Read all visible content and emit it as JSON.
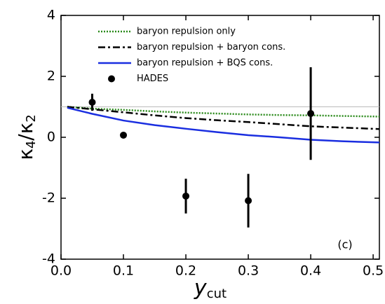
{
  "chart_data": {
    "type": "line",
    "ylabel": [
      "κ",
      "4",
      "/κ",
      "2"
    ],
    "xlabel": [
      "y",
      "cut"
    ],
    "annotation": "(c)",
    "xlim": [
      0,
      0.51
    ],
    "ylim": [
      -4,
      4
    ],
    "xticks": [
      {
        "value": 0,
        "label": "0.0"
      },
      0.1,
      0.2,
      0.3,
      0.4,
      0.5
    ],
    "yticks": [
      -4,
      -2,
      0,
      2,
      4
    ],
    "hline": 1,
    "legend": "upper left",
    "series": [
      {
        "name": "baryon repulsion only",
        "color": "#2a8a1a",
        "style": "dotted",
        "x": [
          0.01,
          0.05,
          0.1,
          0.15,
          0.2,
          0.25,
          0.3,
          0.35,
          0.4,
          0.45,
          0.51
        ],
        "values": [
          1.0,
          0.94,
          0.9,
          0.85,
          0.81,
          0.78,
          0.75,
          0.73,
          0.72,
          0.7,
          0.68
        ]
      },
      {
        "name": "baryon repulsion + baryon cons.",
        "color": "#000000",
        "style": "dashdot",
        "x": [
          0.01,
          0.05,
          0.1,
          0.15,
          0.2,
          0.25,
          0.3,
          0.35,
          0.4,
          0.45,
          0.51
        ],
        "values": [
          1.0,
          0.92,
          0.82,
          0.72,
          0.63,
          0.56,
          0.5,
          0.43,
          0.36,
          0.32,
          0.27
        ]
      },
      {
        "name": "baryon repulsion + BQS cons.",
        "color": "#1a2ee0",
        "style": "solid",
        "x": [
          0.01,
          0.05,
          0.1,
          0.15,
          0.2,
          0.25,
          0.3,
          0.35,
          0.4,
          0.45,
          0.51
        ],
        "values": [
          0.97,
          0.77,
          0.55,
          0.4,
          0.28,
          0.17,
          0.07,
          0.0,
          -0.08,
          -0.13,
          -0.17
        ]
      },
      {
        "name": "HADES",
        "color": "#000000",
        "style": "points",
        "x": [
          0.05,
          0.1,
          0.2,
          0.3,
          0.4
        ],
        "values": [
          1.15,
          0.07,
          -1.93,
          -2.08,
          0.78
        ],
        "errors": [
          0.28,
          0.1,
          0.57,
          0.88,
          1.52
        ]
      }
    ]
  }
}
